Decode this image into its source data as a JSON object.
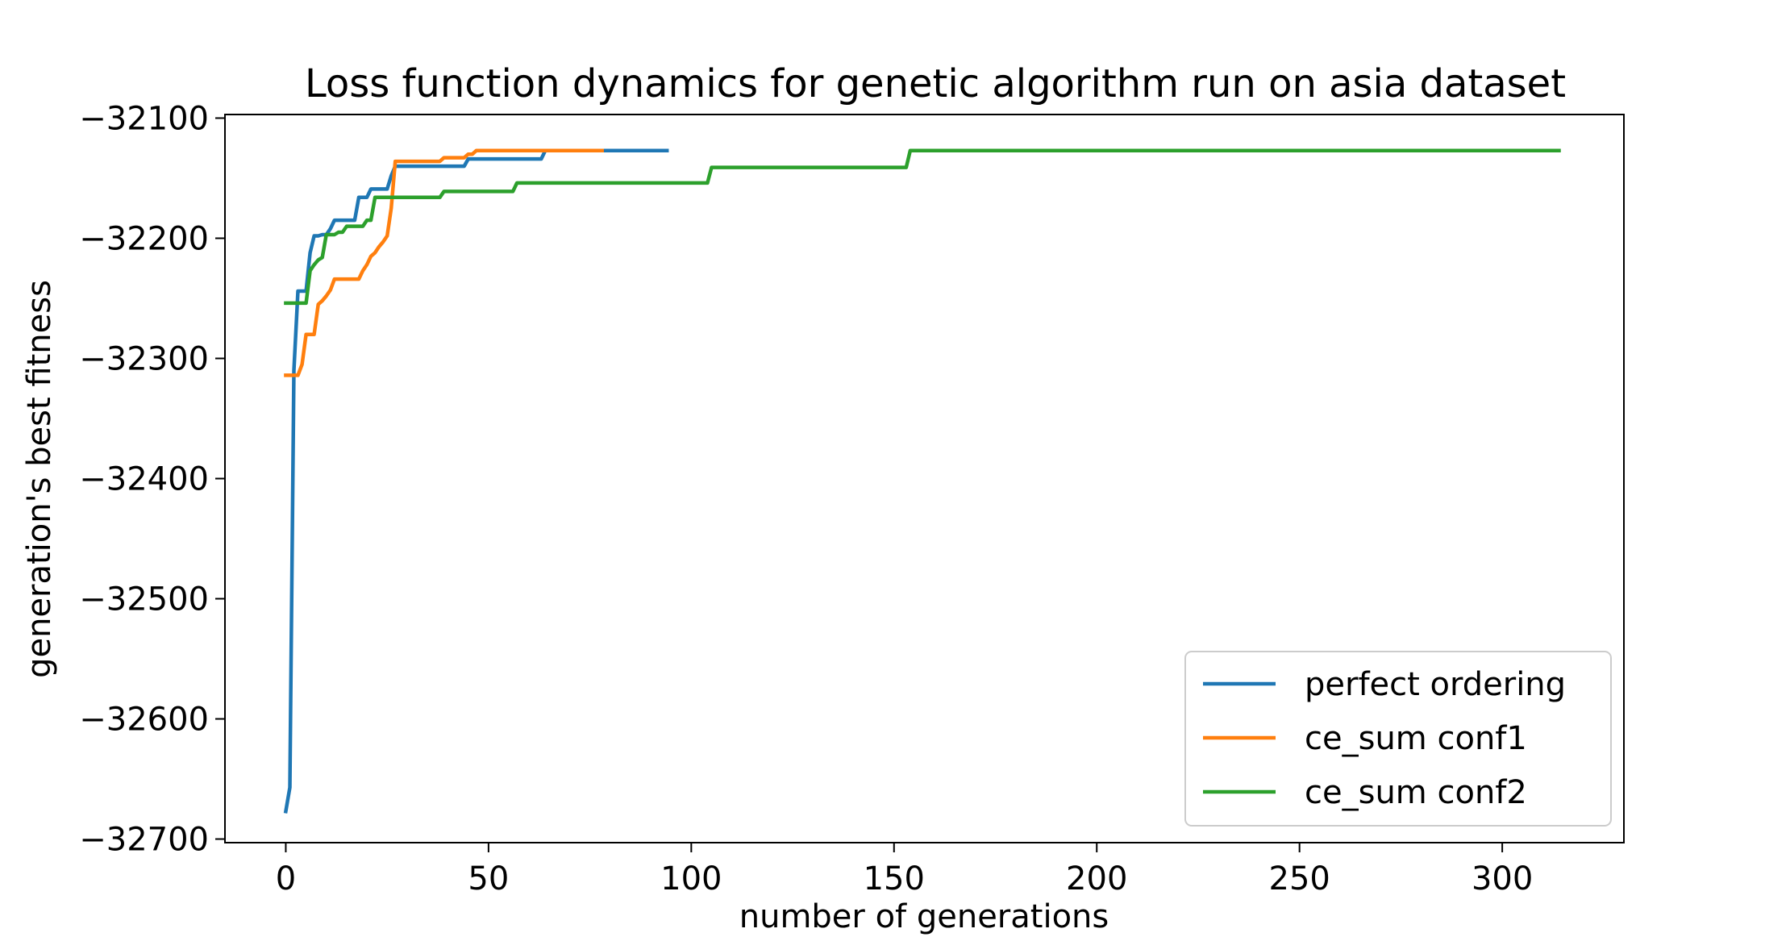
{
  "chart_data": {
    "type": "line",
    "title": "Loss function dynamics for genetic algorithm run on asia dataset",
    "xlabel": "number of generations",
    "ylabel": "generation's best fitness",
    "xlim": [
      -15,
      330
    ],
    "ylim": [
      -32703,
      -32097
    ],
    "xticks": [
      0,
      50,
      100,
      150,
      200,
      250,
      300
    ],
    "yticks": [
      -32100,
      -32200,
      -32300,
      -32400,
      -32500,
      -32600,
      -32700
    ],
    "xtick_labels": [
      "0",
      "50",
      "100",
      "150",
      "200",
      "250",
      "300"
    ],
    "ytick_labels": [
      "−32100",
      "−32200",
      "−32300",
      "−32400",
      "−32500",
      "−32600",
      "−32700"
    ],
    "grid": false,
    "legend_position": "lower-right",
    "series": [
      {
        "name": "perfect ordering",
        "color": "#1f77b4",
        "x": [
          0,
          1,
          2,
          3,
          4,
          5,
          6,
          7,
          8,
          9,
          10,
          11,
          12,
          13,
          17,
          18,
          20,
          21,
          22,
          25,
          26,
          27,
          30,
          40,
          44,
          45,
          50,
          63,
          64,
          70,
          80,
          94
        ],
        "y": [
          -32677,
          -32657,
          -32310,
          -32244,
          -32244,
          -32244,
          -32212,
          -32198,
          -32198,
          -32197,
          -32197,
          -32192,
          -32185,
          -32185,
          -32185,
          -32166,
          -32166,
          -32159,
          -32159,
          -32159,
          -32148,
          -32140,
          -32140,
          -32140,
          -32140,
          -32134,
          -32134,
          -32134,
          -32127,
          -32127,
          -32127,
          -32127
        ]
      },
      {
        "name": "ce_sum conf1",
        "color": "#ff7f0e",
        "x": [
          0,
          3,
          4,
          5,
          6,
          7,
          8,
          9,
          10,
          11,
          12,
          13,
          14,
          15,
          18,
          19,
          20,
          21,
          22,
          23,
          24,
          25,
          26,
          27,
          30,
          38,
          39,
          44,
          45,
          46,
          47,
          50,
          60,
          70,
          78
        ],
        "y": [
          -32314,
          -32314,
          -32305,
          -32280,
          -32280,
          -32280,
          -32255,
          -32252,
          -32248,
          -32243,
          -32234,
          -32234,
          -32234,
          -32234,
          -32234,
          -32227,
          -32222,
          -32215,
          -32212,
          -32207,
          -32203,
          -32198,
          -32175,
          -32136,
          -32136,
          -32136,
          -32133,
          -32133,
          -32130,
          -32130,
          -32127,
          -32127,
          -32127,
          -32127,
          -32127
        ]
      },
      {
        "name": "ce_sum conf2",
        "color": "#2ca02c",
        "x": [
          0,
          4,
          5,
          6,
          7,
          8,
          9,
          10,
          12,
          13,
          14,
          15,
          17,
          18,
          19,
          20,
          21,
          22,
          30,
          38,
          39,
          56,
          57,
          60,
          100,
          104,
          105,
          120,
          153,
          154,
          200,
          250,
          314
        ],
        "y": [
          -32254,
          -32254,
          -32254,
          -32227,
          -32222,
          -32218,
          -32216,
          -32197,
          -32197,
          -32195,
          -32195,
          -32190,
          -32190,
          -32190,
          -32190,
          -32185,
          -32185,
          -32166,
          -32166,
          -32166,
          -32161,
          -32161,
          -32154,
          -32154,
          -32154,
          -32154,
          -32141,
          -32141,
          -32141,
          -32127,
          -32127,
          -32127,
          -32127
        ]
      }
    ]
  }
}
